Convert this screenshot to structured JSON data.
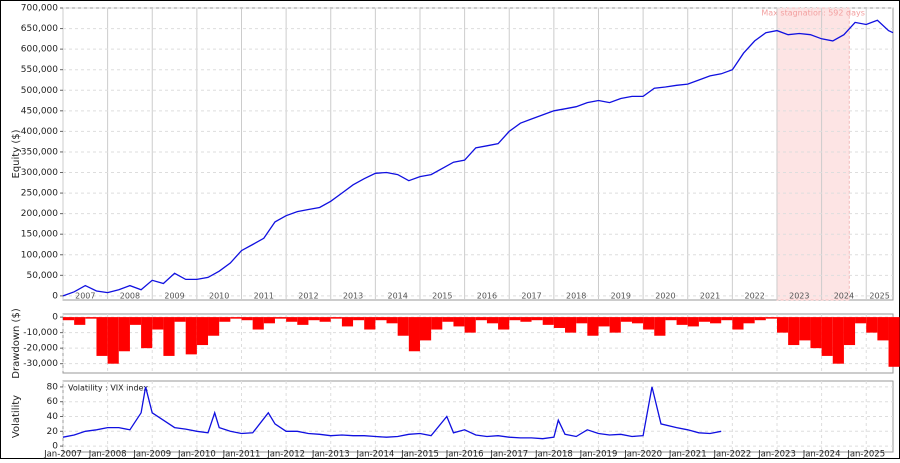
{
  "chart_data": [
    {
      "type": "line",
      "ylabel": "Equity ($)",
      "color": "#1010e0",
      "grid": true,
      "xlim": [
        2007,
        2025.6
      ],
      "ylim": [
        -10000,
        700000
      ],
      "yticks": [
        0,
        {
          "value": 50000,
          "label": "50,000"
        },
        {
          "value": 100000,
          "label": "100,000"
        },
        {
          "value": 150000,
          "label": "150,000"
        },
        {
          "value": 200000,
          "label": "200,000"
        },
        {
          "value": 250000,
          "label": "250,000"
        },
        {
          "value": 300000,
          "label": "300,000"
        },
        {
          "value": 350000,
          "label": "350,000"
        },
        {
          "value": 400000,
          "label": "400,000"
        },
        {
          "value": 450000,
          "label": "450,000"
        },
        {
          "value": 500000,
          "label": "500,000"
        },
        {
          "value": 550000,
          "label": "550,000"
        },
        {
          "value": 600000,
          "label": "600,000"
        },
        {
          "value": 650000,
          "label": "650,000"
        },
        {
          "value": 700000,
          "label": "700,000"
        }
      ],
      "xticks": [
        {
          "value": 2007.5,
          "label": "2007"
        },
        {
          "value": 2008.5,
          "label": "2008"
        },
        {
          "value": 2009.5,
          "label": "2009"
        },
        {
          "value": 2010.5,
          "label": "2010"
        },
        {
          "value": 2011.5,
          "label": "2011"
        },
        {
          "value": 2012.5,
          "label": "2012"
        },
        {
          "value": 2013.5,
          "label": "2013"
        },
        {
          "value": 2014.5,
          "label": "2014"
        },
        {
          "value": 2015.5,
          "label": "2015"
        },
        {
          "value": 2016.5,
          "label": "2016"
        },
        {
          "value": 2017.5,
          "label": "2017"
        },
        {
          "value": 2018.5,
          "label": "2018"
        },
        {
          "value": 2019.5,
          "label": "2019"
        },
        {
          "value": 2020.5,
          "label": "2020"
        },
        {
          "value": 2021.5,
          "label": "2021"
        },
        {
          "value": 2022.5,
          "label": "2022"
        },
        {
          "value": 2023.5,
          "label": "2023"
        },
        {
          "value": 2024.5,
          "label": "2024"
        },
        {
          "value": 2025.3,
          "label": "2025"
        }
      ],
      "stagnation": {
        "label": "Max stagnation: 592 days",
        "start": 2023.0,
        "end": 2024.62,
        "color": "#fde4e4"
      },
      "x": [
        2007.0,
        2007.25,
        2007.5,
        2007.75,
        2008.0,
        2008.25,
        2008.5,
        2008.75,
        2009.0,
        2009.25,
        2009.5,
        2009.75,
        2010.0,
        2010.25,
        2010.5,
        2010.75,
        2011.0,
        2011.25,
        2011.5,
        2011.75,
        2012.0,
        2012.25,
        2012.5,
        2012.75,
        2013.0,
        2013.25,
        2013.5,
        2013.75,
        2014.0,
        2014.25,
        2014.5,
        2014.75,
        2015.0,
        2015.25,
        2015.5,
        2015.75,
        2016.0,
        2016.25,
        2016.5,
        2016.75,
        2017.0,
        2017.25,
        2017.5,
        2017.75,
        2018.0,
        2018.25,
        2018.5,
        2018.75,
        2019.0,
        2019.25,
        2019.5,
        2019.75,
        2020.0,
        2020.25,
        2020.5,
        2020.75,
        2021.0,
        2021.25,
        2021.5,
        2021.75,
        2022.0,
        2022.25,
        2022.5,
        2022.75,
        2023.0,
        2023.25,
        2023.5,
        2023.75,
        2024.0,
        2024.25,
        2024.5,
        2024.75,
        2025.0,
        2025.25,
        2025.5,
        2025.6
      ],
      "values": [
        0,
        10000,
        25000,
        12000,
        8000,
        15000,
        25000,
        15000,
        38000,
        30000,
        55000,
        40000,
        40000,
        45000,
        60000,
        80000,
        110000,
        125000,
        140000,
        180000,
        195000,
        205000,
        210000,
        215000,
        230000,
        250000,
        270000,
        285000,
        298000,
        300000,
        295000,
        280000,
        290000,
        295000,
        310000,
        325000,
        330000,
        360000,
        365000,
        370000,
        400000,
        420000,
        430000,
        440000,
        450000,
        455000,
        460000,
        470000,
        475000,
        470000,
        480000,
        485000,
        485000,
        505000,
        508000,
        512000,
        515000,
        525000,
        535000,
        540000,
        550000,
        590000,
        620000,
        640000,
        645000,
        635000,
        638000,
        635000,
        625000,
        620000,
        635000,
        665000,
        660000,
        670000,
        645000,
        640000
      ]
    },
    {
      "type": "bar",
      "ylabel": "Drawdown ($)",
      "color": "#ff0000",
      "grid": true,
      "xlim": [
        2007,
        2025.6
      ],
      "ylim": [
        -36000,
        2000
      ],
      "yticks": [
        0,
        {
          "value": -10000,
          "label": "-10,000"
        },
        {
          "value": -20000,
          "label": "-20,000"
        },
        {
          "value": -30000,
          "label": "-30,000"
        }
      ],
      "x": [
        2007.0,
        2007.25,
        2007.5,
        2007.75,
        2008.0,
        2008.25,
        2008.5,
        2008.75,
        2009.0,
        2009.25,
        2009.5,
        2009.75,
        2010.0,
        2010.25,
        2010.5,
        2010.75,
        2011.0,
        2011.25,
        2011.5,
        2011.75,
        2012.0,
        2012.25,
        2012.5,
        2012.75,
        2013.0,
        2013.25,
        2013.5,
        2013.75,
        2014.0,
        2014.25,
        2014.5,
        2014.75,
        2015.0,
        2015.25,
        2015.5,
        2015.75,
        2016.0,
        2016.25,
        2016.5,
        2016.75,
        2017.0,
        2017.25,
        2017.5,
        2017.75,
        2018.0,
        2018.25,
        2018.5,
        2018.75,
        2019.0,
        2019.25,
        2019.5,
        2019.75,
        2020.0,
        2020.25,
        2020.5,
        2020.75,
        2021.0,
        2021.25,
        2021.5,
        2021.75,
        2022.0,
        2022.25,
        2022.5,
        2022.75,
        2023.0,
        2023.25,
        2023.5,
        2023.75,
        2024.0,
        2024.25,
        2024.5,
        2024.75,
        2025.0,
        2025.25,
        2025.5
      ],
      "values": [
        -2000,
        -5000,
        -1000,
        -25000,
        -30000,
        -22000,
        -5000,
        -20000,
        -8000,
        -25000,
        -3000,
        -24000,
        -18000,
        -12000,
        -3000,
        -1000,
        -2000,
        -8000,
        -4000,
        -1000,
        -3000,
        -5000,
        -2000,
        -3000,
        -1000,
        -6000,
        -2000,
        -8000,
        -2000,
        -4000,
        -12000,
        -22000,
        -15000,
        -8000,
        -3000,
        -6000,
        -10000,
        -2000,
        -4000,
        -8000,
        -2000,
        -3000,
        -2000,
        -5000,
        -7000,
        -10000,
        -4000,
        -12000,
        -6000,
        -10000,
        -3000,
        -4000,
        -8000,
        -12000,
        -2000,
        -5000,
        -6000,
        -3000,
        -4000,
        -2000,
        -8000,
        -4000,
        -2000,
        -1000,
        -10000,
        -18000,
        -15000,
        -20000,
        -25000,
        -30000,
        -18000,
        -4000,
        -10000,
        -15000,
        -32000
      ]
    },
    {
      "type": "line",
      "ylabel": "Volatility",
      "title": "Volatility : VIX index",
      "color": "#1010e0",
      "grid": true,
      "xlim": [
        2007,
        2025.6
      ],
      "ylim": [
        -8,
        88
      ],
      "yticks": [
        0,
        20,
        40,
        60,
        80
      ],
      "xticks": [
        {
          "value": 2007,
          "label": "Jan-2007"
        },
        {
          "value": 2008,
          "label": "Jan-2008"
        },
        {
          "value": 2009,
          "label": "Jan-2009"
        },
        {
          "value": 2010,
          "label": "Jan-2010"
        },
        {
          "value": 2011,
          "label": "Jan-2011"
        },
        {
          "value": 2012,
          "label": "Jan-2012"
        },
        {
          "value": 2013,
          "label": "Jan-2013"
        },
        {
          "value": 2014,
          "label": "Jan-2014"
        },
        {
          "value": 2015,
          "label": "Jan-2015"
        },
        {
          "value": 2016,
          "label": "Jan-2016"
        },
        {
          "value": 2017,
          "label": "Jan-2017"
        },
        {
          "value": 2018,
          "label": "Jan-2018"
        },
        {
          "value": 2019,
          "label": "Jan-2019"
        },
        {
          "value": 2020,
          "label": "Jan-2020"
        },
        {
          "value": 2021,
          "label": "Jan-2021"
        },
        {
          "value": 2022,
          "label": "Jan-2022"
        },
        {
          "value": 2023,
          "label": "Jan-2023"
        },
        {
          "value": 2024,
          "label": "Jan-2024"
        },
        {
          "value": 2025,
          "label": "Jan-2025"
        }
      ],
      "x": [
        2007.0,
        2007.25,
        2007.5,
        2007.75,
        2008.0,
        2008.25,
        2008.5,
        2008.75,
        2008.85,
        2009.0,
        2009.25,
        2009.5,
        2009.75,
        2010.0,
        2010.25,
        2010.4,
        2010.5,
        2010.75,
        2011.0,
        2011.25,
        2011.6,
        2011.75,
        2012.0,
        2012.25,
        2012.5,
        2012.75,
        2013.0,
        2013.25,
        2013.5,
        2013.75,
        2014.0,
        2014.25,
        2014.5,
        2014.75,
        2015.0,
        2015.25,
        2015.6,
        2015.75,
        2016.0,
        2016.25,
        2016.5,
        2016.75,
        2017.0,
        2017.25,
        2017.5,
        2017.75,
        2018.0,
        2018.1,
        2018.25,
        2018.5,
        2018.75,
        2019.0,
        2019.25,
        2019.5,
        2019.75,
        2020.0,
        2020.2,
        2020.4,
        2020.75,
        2021.0,
        2021.25,
        2021.5,
        2021.75
      ],
      "values": [
        12,
        15,
        20,
        22,
        25,
        25,
        22,
        45,
        80,
        45,
        35,
        25,
        23,
        20,
        18,
        45,
        25,
        20,
        17,
        18,
        45,
        30,
        20,
        20,
        17,
        16,
        14,
        15,
        14,
        14,
        13,
        12,
        13,
        16,
        17,
        14,
        40,
        18,
        22,
        15,
        13,
        14,
        12,
        11,
        11,
        10,
        12,
        35,
        16,
        13,
        22,
        17,
        15,
        16,
        13,
        14,
        80,
        30,
        25,
        22,
        18,
        17,
        20
      ]
    }
  ]
}
